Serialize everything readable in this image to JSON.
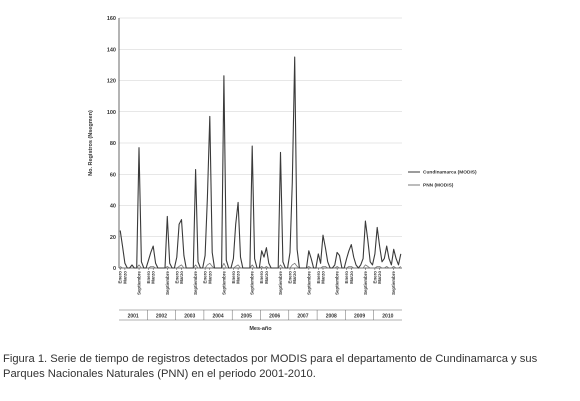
{
  "chart_data": {
    "type": "line",
    "xlabel": "Mes-año",
    "ylabel": "No. Registros (Nsegmen)",
    "ylim": [
      0,
      160
    ],
    "y_ticks": [
      0,
      20,
      40,
      60,
      80,
      100,
      120,
      140,
      160
    ],
    "grid": "horizontal",
    "legend_position": "right",
    "month_tick_labels": [
      "Enero",
      "Marzo",
      "Septiembre"
    ],
    "years": [
      "2001",
      "2002",
      "2003",
      "2004",
      "2005",
      "2006",
      "2007",
      "2008",
      "2009",
      "2010"
    ],
    "series": [
      {
        "name": "Cundinamarca (MODIS)",
        "color": "#3a3a3a",
        "values": [
          24,
          14,
          3,
          0,
          0,
          2,
          0,
          0,
          77,
          4,
          0,
          0,
          5,
          10,
          14,
          3,
          0,
          0,
          0,
          0,
          33,
          3,
          0,
          0,
          7,
          28,
          31,
          8,
          0,
          0,
          0,
          0,
          63,
          4,
          0,
          0,
          8,
          45,
          97,
          10,
          0,
          0,
          0,
          0,
          123,
          5,
          0,
          0,
          6,
          28,
          42,
          7,
          0,
          0,
          0,
          0,
          78,
          6,
          0,
          0,
          11,
          7,
          13,
          3,
          0,
          0,
          0,
          0,
          74,
          4,
          0,
          0,
          10,
          55,
          135,
          12,
          0,
          0,
          0,
          0,
          11,
          6,
          0,
          0,
          9,
          3,
          21,
          13,
          4,
          0,
          0,
          2,
          10,
          8,
          0,
          0,
          6,
          11,
          15,
          7,
          2,
          0,
          2,
          6,
          30,
          18,
          4,
          2,
          9,
          26,
          14,
          4,
          6,
          14,
          6,
          2,
          12,
          6,
          2,
          9
        ]
      },
      {
        "name": "PNN (MODIS)",
        "color": "#7a7a7a",
        "values": [
          1,
          0,
          0,
          0,
          0,
          0,
          0,
          0,
          2,
          0,
          0,
          0,
          0,
          1,
          1,
          0,
          0,
          0,
          0,
          0,
          1,
          0,
          0,
          0,
          0,
          1,
          2,
          0,
          0,
          0,
          0,
          0,
          2,
          0,
          0,
          0,
          0,
          2,
          3,
          1,
          0,
          0,
          0,
          0,
          3,
          0,
          0,
          0,
          0,
          1,
          2,
          0,
          0,
          0,
          0,
          0,
          2,
          0,
          0,
          0,
          1,
          0,
          1,
          0,
          0,
          0,
          0,
          0,
          2,
          0,
          0,
          0,
          0,
          2,
          3,
          1,
          0,
          0,
          0,
          0,
          1,
          0,
          0,
          0,
          0,
          0,
          1,
          1,
          0,
          0,
          0,
          0,
          1,
          0,
          0,
          0,
          0,
          1,
          1,
          0,
          0,
          0,
          0,
          0,
          2,
          1,
          0,
          0,
          0,
          1,
          1,
          0,
          0,
          1,
          0,
          0,
          1,
          0,
          0,
          1
        ]
      }
    ]
  },
  "caption": "Figura 1. Serie de tiempo de registros detectados por MODIS para el departamento de Cundinamarca y sus Parques Nacionales Naturales (PNN) en el periodo 2001-2010."
}
